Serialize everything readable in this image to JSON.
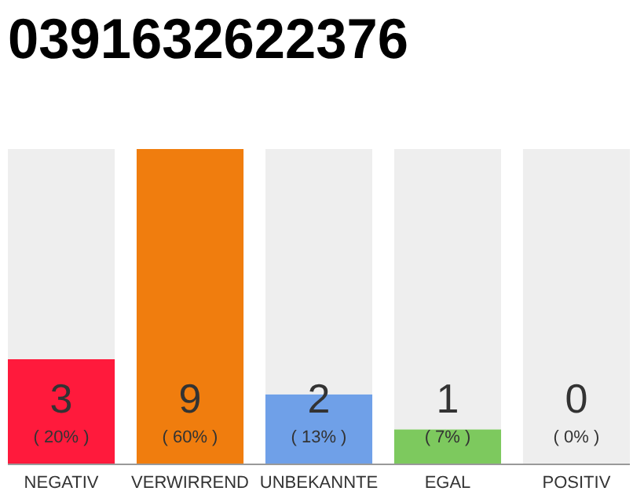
{
  "chart_data": {
    "type": "bar",
    "title": "0391632622376",
    "categories": [
      "NEGATIV",
      "VERWIRREND",
      "UNBEKANNTE",
      "EGAL",
      "POSITIV"
    ],
    "stacked": true,
    "series": [
      {
        "colors": [
          "#ff1a3c",
          "#f07d0e",
          "#6fa0e8",
          "#7dc95e",
          "#cccccc"
        ],
        "values": [
          3,
          9,
          2,
          1,
          0
        ],
        "value_labels": [
          "3",
          "9",
          "2",
          "1",
          null
        ]
      },
      {
        "color": "#eeeeee",
        "values": [
          6,
          0,
          7,
          8,
          9
        ]
      }
    ],
    "annotations": [
      "( 20% )",
      "( 60% )",
      "( 13% )",
      "( 7% )",
      "( 0% )",
      "0"
    ],
    "tick_labels": "x"
  }
}
